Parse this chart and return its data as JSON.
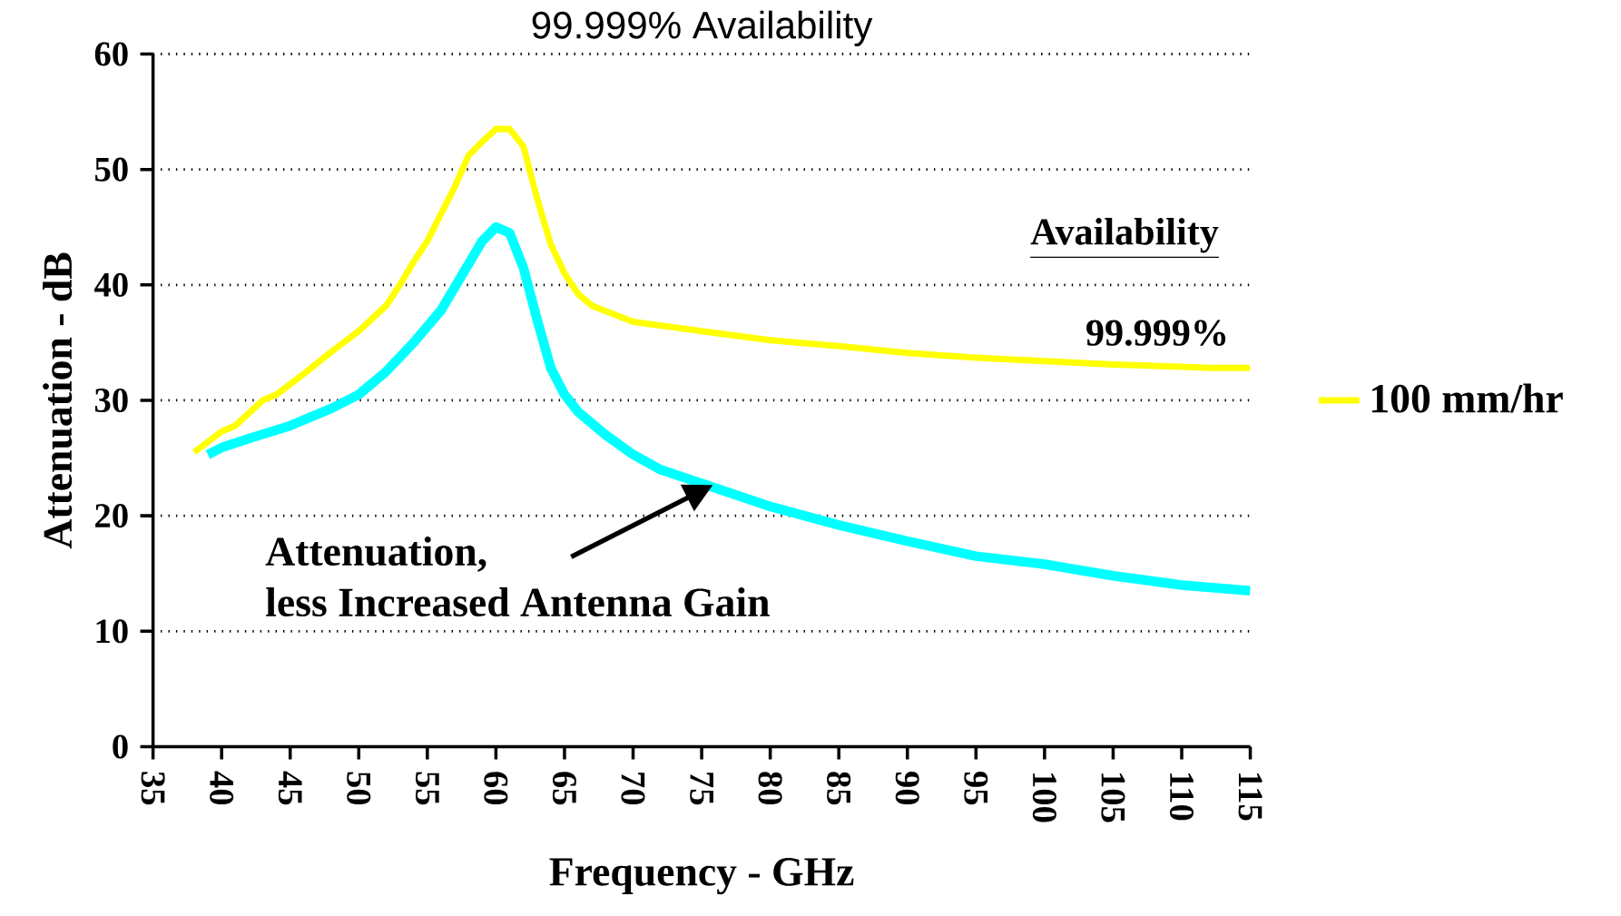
{
  "chart_data": {
    "type": "line",
    "title": "99.999% Availability",
    "xlabel": "Frequency - GHz",
    "ylabel": "Attenuation - dB",
    "xlim": [
      35,
      115
    ],
    "xticks": [
      35,
      40,
      45,
      50,
      55,
      60,
      65,
      70,
      75,
      80,
      85,
      90,
      95,
      100,
      105,
      110,
      115
    ],
    "ylim": [
      0,
      60
    ],
    "yticks": [
      0,
      10,
      20,
      30,
      40,
      50,
      60
    ],
    "grid": "y",
    "legend": "right",
    "series": [
      {
        "name": "100 mm/hr",
        "color": "#ffff00",
        "x": [
          38,
          40,
          41,
          43,
          44,
          46,
          48,
          50,
          52,
          53,
          54,
          55,
          57,
          58,
          59,
          60,
          61,
          62,
          63,
          64,
          65,
          66,
          67,
          70,
          75,
          80,
          85,
          90,
          95,
          100,
          105,
          110,
          112,
          115
        ],
        "values": [
          25.5,
          27.3,
          27.8,
          30,
          30.5,
          32.3,
          34.2,
          36,
          38.2,
          40,
          42,
          43.8,
          48.5,
          51.2,
          52.4,
          53.5,
          53.5,
          52,
          47.5,
          43.5,
          41,
          39.2,
          38.2,
          36.8,
          36,
          35.2,
          34.7,
          34.1,
          33.7,
          33.4,
          33.1,
          32.9,
          32.8,
          32.8
        ]
      },
      {
        "color": "#00ffff",
        "x": [
          39,
          40,
          42,
          45,
          48,
          50,
          52,
          54,
          56,
          58,
          59,
          60,
          61,
          62,
          63,
          64,
          65,
          66,
          68,
          70,
          72,
          75,
          78,
          80,
          85,
          90,
          95,
          100,
          105,
          110,
          115
        ],
        "values": [
          25.3,
          25.9,
          26.7,
          27.8,
          29.3,
          30.5,
          32.5,
          35,
          37.8,
          41.8,
          43.8,
          45,
          44.5,
          41.5,
          37,
          32.8,
          30.5,
          29,
          27,
          25.3,
          24,
          22.8,
          21.6,
          20.8,
          19.2,
          17.8,
          16.5,
          15.8,
          14.8,
          14,
          13.5
        ]
      }
    ],
    "annotations": [
      "Attenuation,",
      "less Increased Antenna Gain",
      "Availability",
      "99.999%"
    ]
  }
}
